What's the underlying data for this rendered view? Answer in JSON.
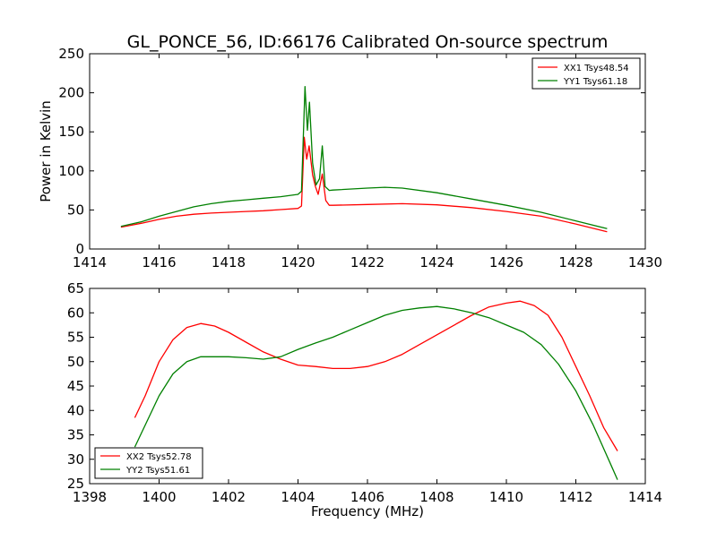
{
  "title": "GL_PONCE_56, ID:66176 Calibrated On-source spectrum",
  "chart_data": [
    {
      "type": "line",
      "ylabel": "Power in Kelvin",
      "xlabel": "",
      "xlim": [
        1414,
        1430
      ],
      "ylim": [
        0,
        250
      ],
      "xticks": [
        1414,
        1416,
        1418,
        1420,
        1422,
        1424,
        1426,
        1428,
        1430
      ],
      "yticks": [
        0,
        50,
        100,
        150,
        200,
        250
      ],
      "legend_position": "top-right",
      "series": [
        {
          "name": "XX1 Tsys48.54",
          "color": "#ff0000",
          "points": [
            [
              1414.9,
              28
            ],
            [
              1415.5,
              33
            ],
            [
              1416,
              38
            ],
            [
              1416.5,
              42
            ],
            [
              1417,
              44.5
            ],
            [
              1417.5,
              46
            ],
            [
              1418,
              47
            ],
            [
              1418.5,
              48
            ],
            [
              1419,
              49
            ],
            [
              1419.5,
              50.5
            ],
            [
              1420,
              52
            ],
            [
              1420.1,
              55
            ],
            [
              1420.18,
              143
            ],
            [
              1420.25,
              115
            ],
            [
              1420.32,
              132
            ],
            [
              1420.42,
              95
            ],
            [
              1420.5,
              80
            ],
            [
              1420.58,
              70
            ],
            [
              1420.7,
              96
            ],
            [
              1420.8,
              62
            ],
            [
              1420.9,
              56
            ],
            [
              1421,
              56
            ],
            [
              1422,
              57
            ],
            [
              1423,
              58
            ],
            [
              1424,
              56.5
            ],
            [
              1425,
              53
            ],
            [
              1426,
              48
            ],
            [
              1427,
              42
            ],
            [
              1428,
              32
            ],
            [
              1428.9,
              22
            ]
          ]
        },
        {
          "name": "YY1 Tsys61.18",
          "color": "#008000",
          "points": [
            [
              1414.9,
              29
            ],
            [
              1415.5,
              35
            ],
            [
              1416,
              42
            ],
            [
              1416.5,
              48
            ],
            [
              1417,
              54
            ],
            [
              1417.5,
              58
            ],
            [
              1418,
              61
            ],
            [
              1418.5,
              63
            ],
            [
              1419,
              65
            ],
            [
              1419.5,
              67
            ],
            [
              1420,
              70
            ],
            [
              1420.1,
              74
            ],
            [
              1420.2,
              208
            ],
            [
              1420.27,
              152
            ],
            [
              1420.33,
              188
            ],
            [
              1420.42,
              110
            ],
            [
              1420.52,
              82
            ],
            [
              1420.62,
              90
            ],
            [
              1420.7,
              132
            ],
            [
              1420.78,
              80
            ],
            [
              1420.9,
              75
            ],
            [
              1421,
              75.5
            ],
            [
              1422,
              78
            ],
            [
              1422.5,
              79
            ],
            [
              1423,
              78
            ],
            [
              1424,
              72
            ],
            [
              1425,
              64
            ],
            [
              1426,
              56
            ],
            [
              1427,
              47
            ],
            [
              1428,
              36
            ],
            [
              1428.9,
              26
            ]
          ]
        }
      ]
    },
    {
      "type": "line",
      "ylabel": "",
      "xlabel": "Frequency (MHz)",
      "xlim": [
        1398,
        1414
      ],
      "ylim": [
        25,
        65
      ],
      "xticks": [
        1398,
        1400,
        1402,
        1404,
        1406,
        1408,
        1410,
        1412,
        1414
      ],
      "yticks": [
        25,
        30,
        35,
        40,
        45,
        50,
        55,
        60,
        65
      ],
      "legend_position": "bottom-left",
      "series": [
        {
          "name": "XX2 Tsys52.78",
          "color": "#ff0000",
          "points": [
            [
              1399.3,
              38.5
            ],
            [
              1399.6,
              43
            ],
            [
              1400,
              50
            ],
            [
              1400.4,
              54.5
            ],
            [
              1400.8,
              57
            ],
            [
              1401.2,
              57.8
            ],
            [
              1401.6,
              57.3
            ],
            [
              1402,
              56
            ],
            [
              1402.5,
              54
            ],
            [
              1403,
              52
            ],
            [
              1403.5,
              50.5
            ],
            [
              1404,
              49.3
            ],
            [
              1404.5,
              49
            ],
            [
              1405,
              48.6
            ],
            [
              1405.5,
              48.6
            ],
            [
              1406,
              49
            ],
            [
              1406.5,
              50
            ],
            [
              1407,
              51.5
            ],
            [
              1407.5,
              53.5
            ],
            [
              1408,
              55.5
            ],
            [
              1408.5,
              57.5
            ],
            [
              1409,
              59.5
            ],
            [
              1409.5,
              61.2
            ],
            [
              1410,
              62
            ],
            [
              1410.4,
              62.4
            ],
            [
              1410.8,
              61.5
            ],
            [
              1411.2,
              59.5
            ],
            [
              1411.6,
              55
            ],
            [
              1412,
              49
            ],
            [
              1412.4,
              43
            ],
            [
              1412.8,
              36.5
            ],
            [
              1413.2,
              31.7
            ]
          ]
        },
        {
          "name": "YY2 Tsys51.61",
          "color": "#008000",
          "points": [
            [
              1399.3,
              32.5
            ],
            [
              1399.6,
              37
            ],
            [
              1400,
              43
            ],
            [
              1400.4,
              47.5
            ],
            [
              1400.8,
              50
            ],
            [
              1401.2,
              51
            ],
            [
              1401.6,
              51
            ],
            [
              1402,
              51
            ],
            [
              1402.5,
              50.8
            ],
            [
              1403,
              50.5
            ],
            [
              1403.5,
              51
            ],
            [
              1404,
              52.5
            ],
            [
              1404.5,
              53.8
            ],
            [
              1405,
              55
            ],
            [
              1405.5,
              56.5
            ],
            [
              1406,
              58
            ],
            [
              1406.5,
              59.5
            ],
            [
              1407,
              60.5
            ],
            [
              1407.5,
              61
            ],
            [
              1408,
              61.3
            ],
            [
              1408.5,
              60.8
            ],
            [
              1409,
              60
            ],
            [
              1409.5,
              59
            ],
            [
              1410,
              57.5
            ],
            [
              1410.5,
              56
            ],
            [
              1411,
              53.5
            ],
            [
              1411.5,
              49.5
            ],
            [
              1412,
              44
            ],
            [
              1412.5,
              37
            ],
            [
              1413,
              29
            ],
            [
              1413.2,
              25.8
            ]
          ]
        }
      ]
    }
  ]
}
